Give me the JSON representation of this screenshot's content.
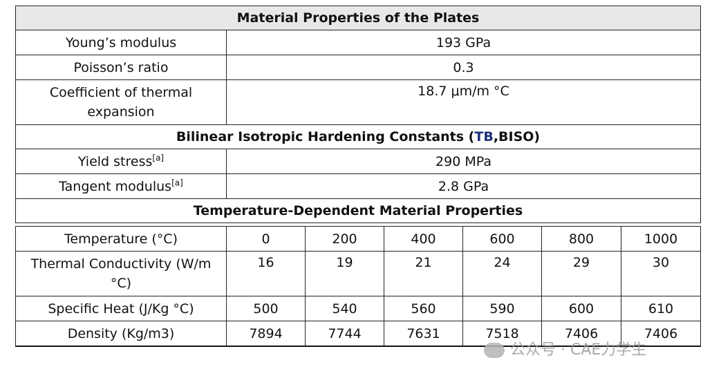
{
  "section1": {
    "title": "Material Properties of the Plates",
    "rows": [
      {
        "label": "Young’s modulus",
        "value": "193 GPa"
      },
      {
        "label": "Poisson’s ratio",
        "value": "0.3"
      },
      {
        "label": "Coefficient of thermal expansion",
        "value": "18.7 μm/m °C"
      }
    ]
  },
  "section2": {
    "title_prefix": "Bilinear Isotropic Hardening Constants (",
    "title_tb": "TB",
    "title_suffix": ",BISO)",
    "rows": [
      {
        "label": "Yield stress",
        "sup": "[a]",
        "value": "290 MPa"
      },
      {
        "label": "Tangent modulus",
        "sup": "[a]",
        "value": "2.8 GPa"
      }
    ]
  },
  "section3": {
    "title": "Temperature-Dependent Material Properties",
    "rows": [
      {
        "label": "Temperature (°C)",
        "values": [
          "0",
          "200",
          "400",
          "600",
          "800",
          "1000"
        ]
      },
      {
        "label": "Thermal Conductivity (W/m °C)",
        "values": [
          "16",
          "19",
          "21",
          "24",
          "29",
          "30"
        ]
      },
      {
        "label": "Specific Heat (J/Kg °C)",
        "values": [
          "500",
          "540",
          "560",
          "590",
          "600",
          "610"
        ]
      },
      {
        "label": "Density (Kg/m3)",
        "values": [
          "7894",
          "7744",
          "7631",
          "7518",
          "7406",
          "7406"
        ]
      }
    ]
  },
  "watermark": "公众号 · CAE力学生"
}
